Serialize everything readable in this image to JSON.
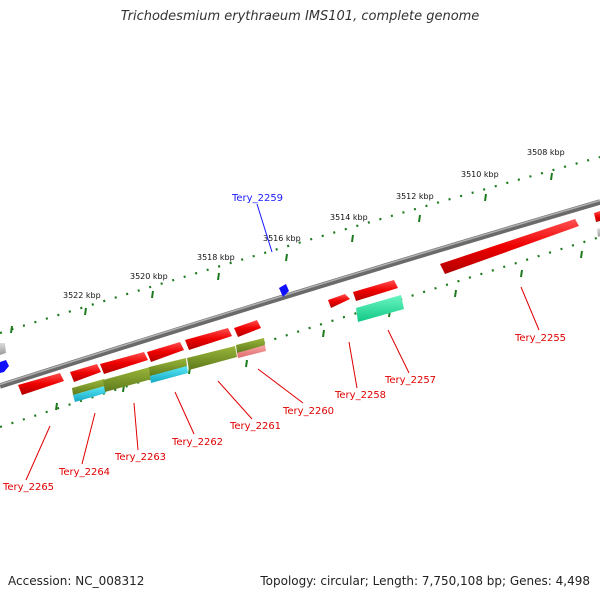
{
  "title": "Trichodesmium erythraeum IMS101, complete genome",
  "footer": {
    "accession": "Accession: NC_008312",
    "topology": "Topology: circular; Length: 7,750,108 bp; Genes: 4,498"
  },
  "colors": {
    "backbone": "#808080",
    "forward_gene": "#ff0000",
    "reverse_gene": "#ff0000",
    "label_forward": "#1a1aff",
    "label_reverse": "#e00000",
    "tick": "#1e7a1e",
    "olive": "#7a9a2a",
    "cyan": "#22c8e0",
    "teal": "#22e0a0",
    "pink": "#f08a8a",
    "blue_marker": "#1010ff"
  },
  "ticks": [
    {
      "label": "3508 kbp"
    },
    {
      "label": "3510 kbp"
    },
    {
      "label": "3512 kbp"
    },
    {
      "label": "3514 kbp"
    },
    {
      "label": "3516 kbp"
    },
    {
      "label": "3518 kbp"
    },
    {
      "label": "3520 kbp"
    },
    {
      "label": "3522 kbp"
    }
  ],
  "gene_labels": [
    {
      "text": "Tery_2259",
      "strand": "forward"
    },
    {
      "text": "Tery_2255",
      "strand": "reverse"
    },
    {
      "text": "Tery_2257",
      "strand": "reverse"
    },
    {
      "text": "Tery_2258",
      "strand": "reverse"
    },
    {
      "text": "Tery_2260",
      "strand": "reverse"
    },
    {
      "text": "Tery_2261",
      "strand": "reverse"
    },
    {
      "text": "Tery_2262",
      "strand": "reverse"
    },
    {
      "text": "Tery_2263",
      "strand": "reverse"
    },
    {
      "text": "Tery_2264",
      "strand": "reverse"
    },
    {
      "text": "Tery_2265",
      "strand": "reverse"
    }
  ]
}
